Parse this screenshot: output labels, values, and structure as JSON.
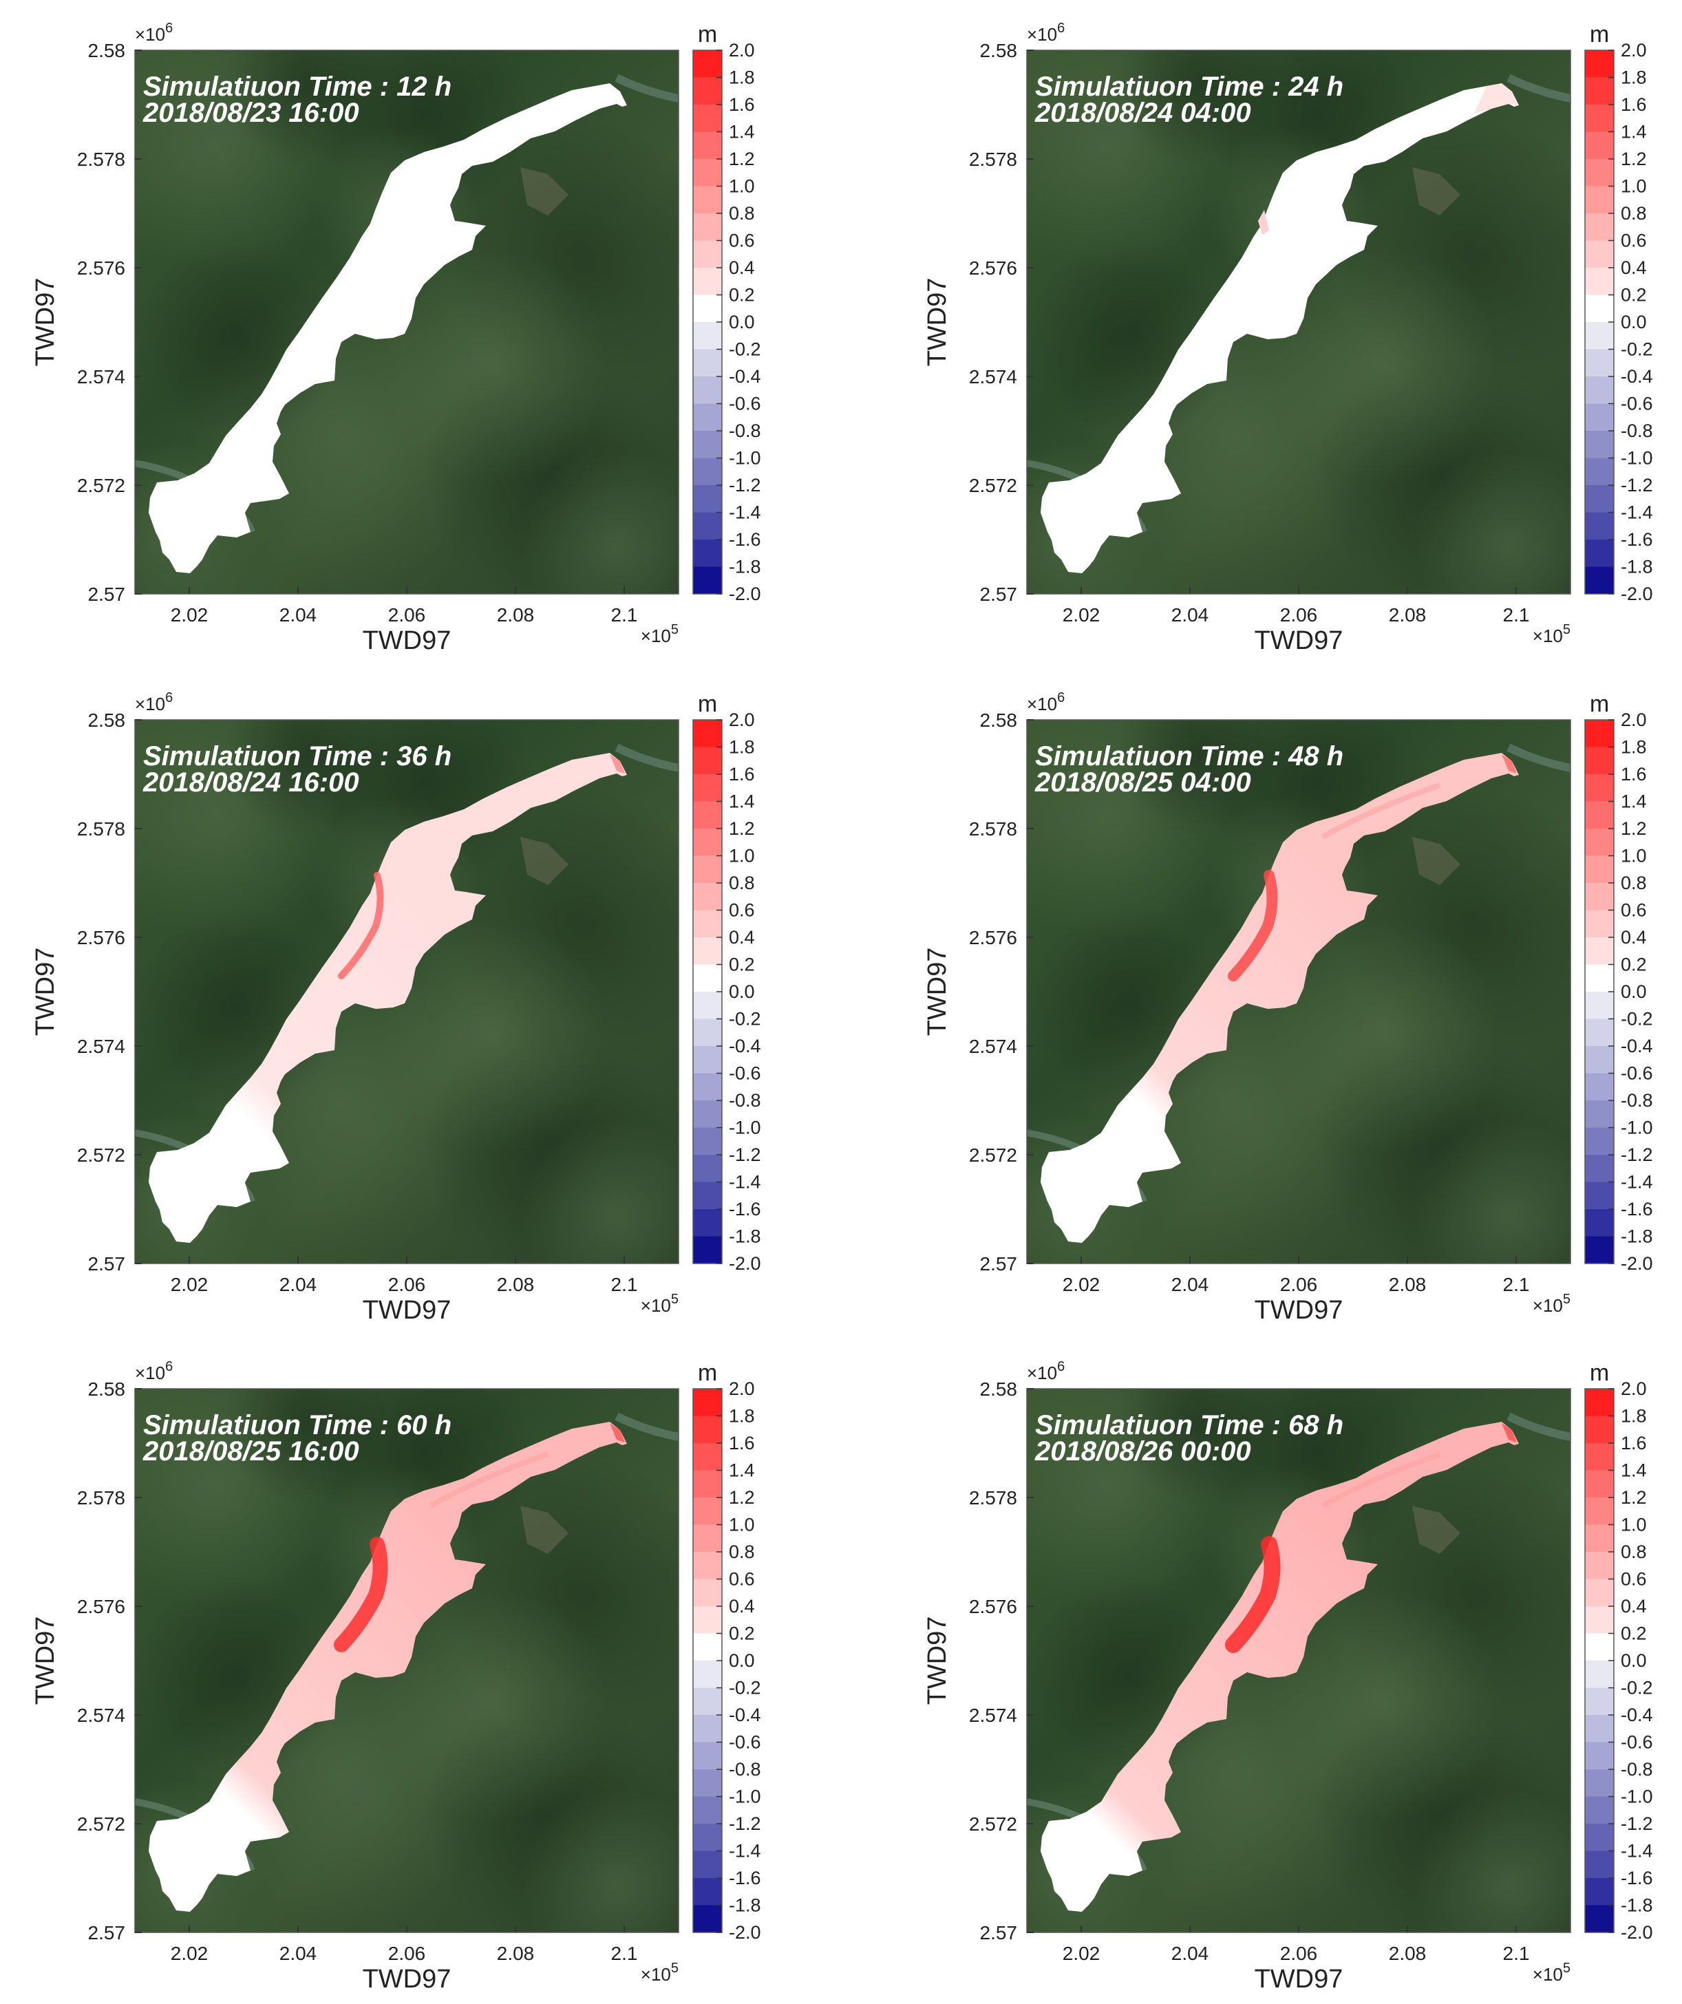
{
  "figure": {
    "colorbar": {
      "unit": "m",
      "ticks": [
        "2.0",
        "1.8",
        "1.6",
        "1.4",
        "1.2",
        "1.0",
        "0.8",
        "0.6",
        "0.4",
        "0.2",
        "0.0",
        "-0.2",
        "-0.4",
        "-0.6",
        "-0.8",
        "-1.0",
        "-1.2",
        "-1.4",
        "-1.6",
        "-1.8",
        "-2.0"
      ],
      "colors": [
        "#ff1f1f",
        "#ff3a3a",
        "#ff5555",
        "#ff6e6e",
        "#ff8585",
        "#ff9d9d",
        "#ffb3b3",
        "#ffc9c9",
        "#ffe0e0",
        "#ffffff",
        "#e8e8f2",
        "#d2d2e8",
        "#bcbcde",
        "#a6a6d4",
        "#9090c9",
        "#7a7abf",
        "#6464b5",
        "#4c4caa",
        "#3030a0",
        "#101090"
      ]
    },
    "axes": {
      "xlabel": "TWD97",
      "ylabel": "TWD97",
      "x_ticks": [
        "2.02",
        "2.04",
        "2.06",
        "2.08",
        "2.1"
      ],
      "y_ticks": [
        "2.58",
        "2.578",
        "2.576",
        "2.574",
        "2.572",
        "2.57"
      ],
      "x_exponent": "×10",
      "x_exponent_power": "5",
      "y_exponent": "×10",
      "y_exponent_power": "6",
      "x_range": [
        201000,
        211000
      ],
      "y_range": [
        2570000,
        2580000
      ]
    },
    "panels": [
      {
        "label": "Simulatiuon Time : 12 h",
        "date": "2018/08/23 16:00",
        "hours": 12
      },
      {
        "label": "Simulatiuon Time : 24 h",
        "date": "2018/08/24 04:00",
        "hours": 24
      },
      {
        "label": "Simulatiuon Time : 36 h",
        "date": "2018/08/24 16:00",
        "hours": 36
      },
      {
        "label": "Simulatiuon Time : 48 h",
        "date": "2018/08/25 04:00",
        "hours": 48
      },
      {
        "label": "Simulatiuon Time : 60 h",
        "date": "2018/08/25 16:00",
        "hours": 60
      },
      {
        "label": "Simulatiuon Time : 68 h",
        "date": "2018/08/26 00:00",
        "hours": 68
      }
    ]
  }
}
